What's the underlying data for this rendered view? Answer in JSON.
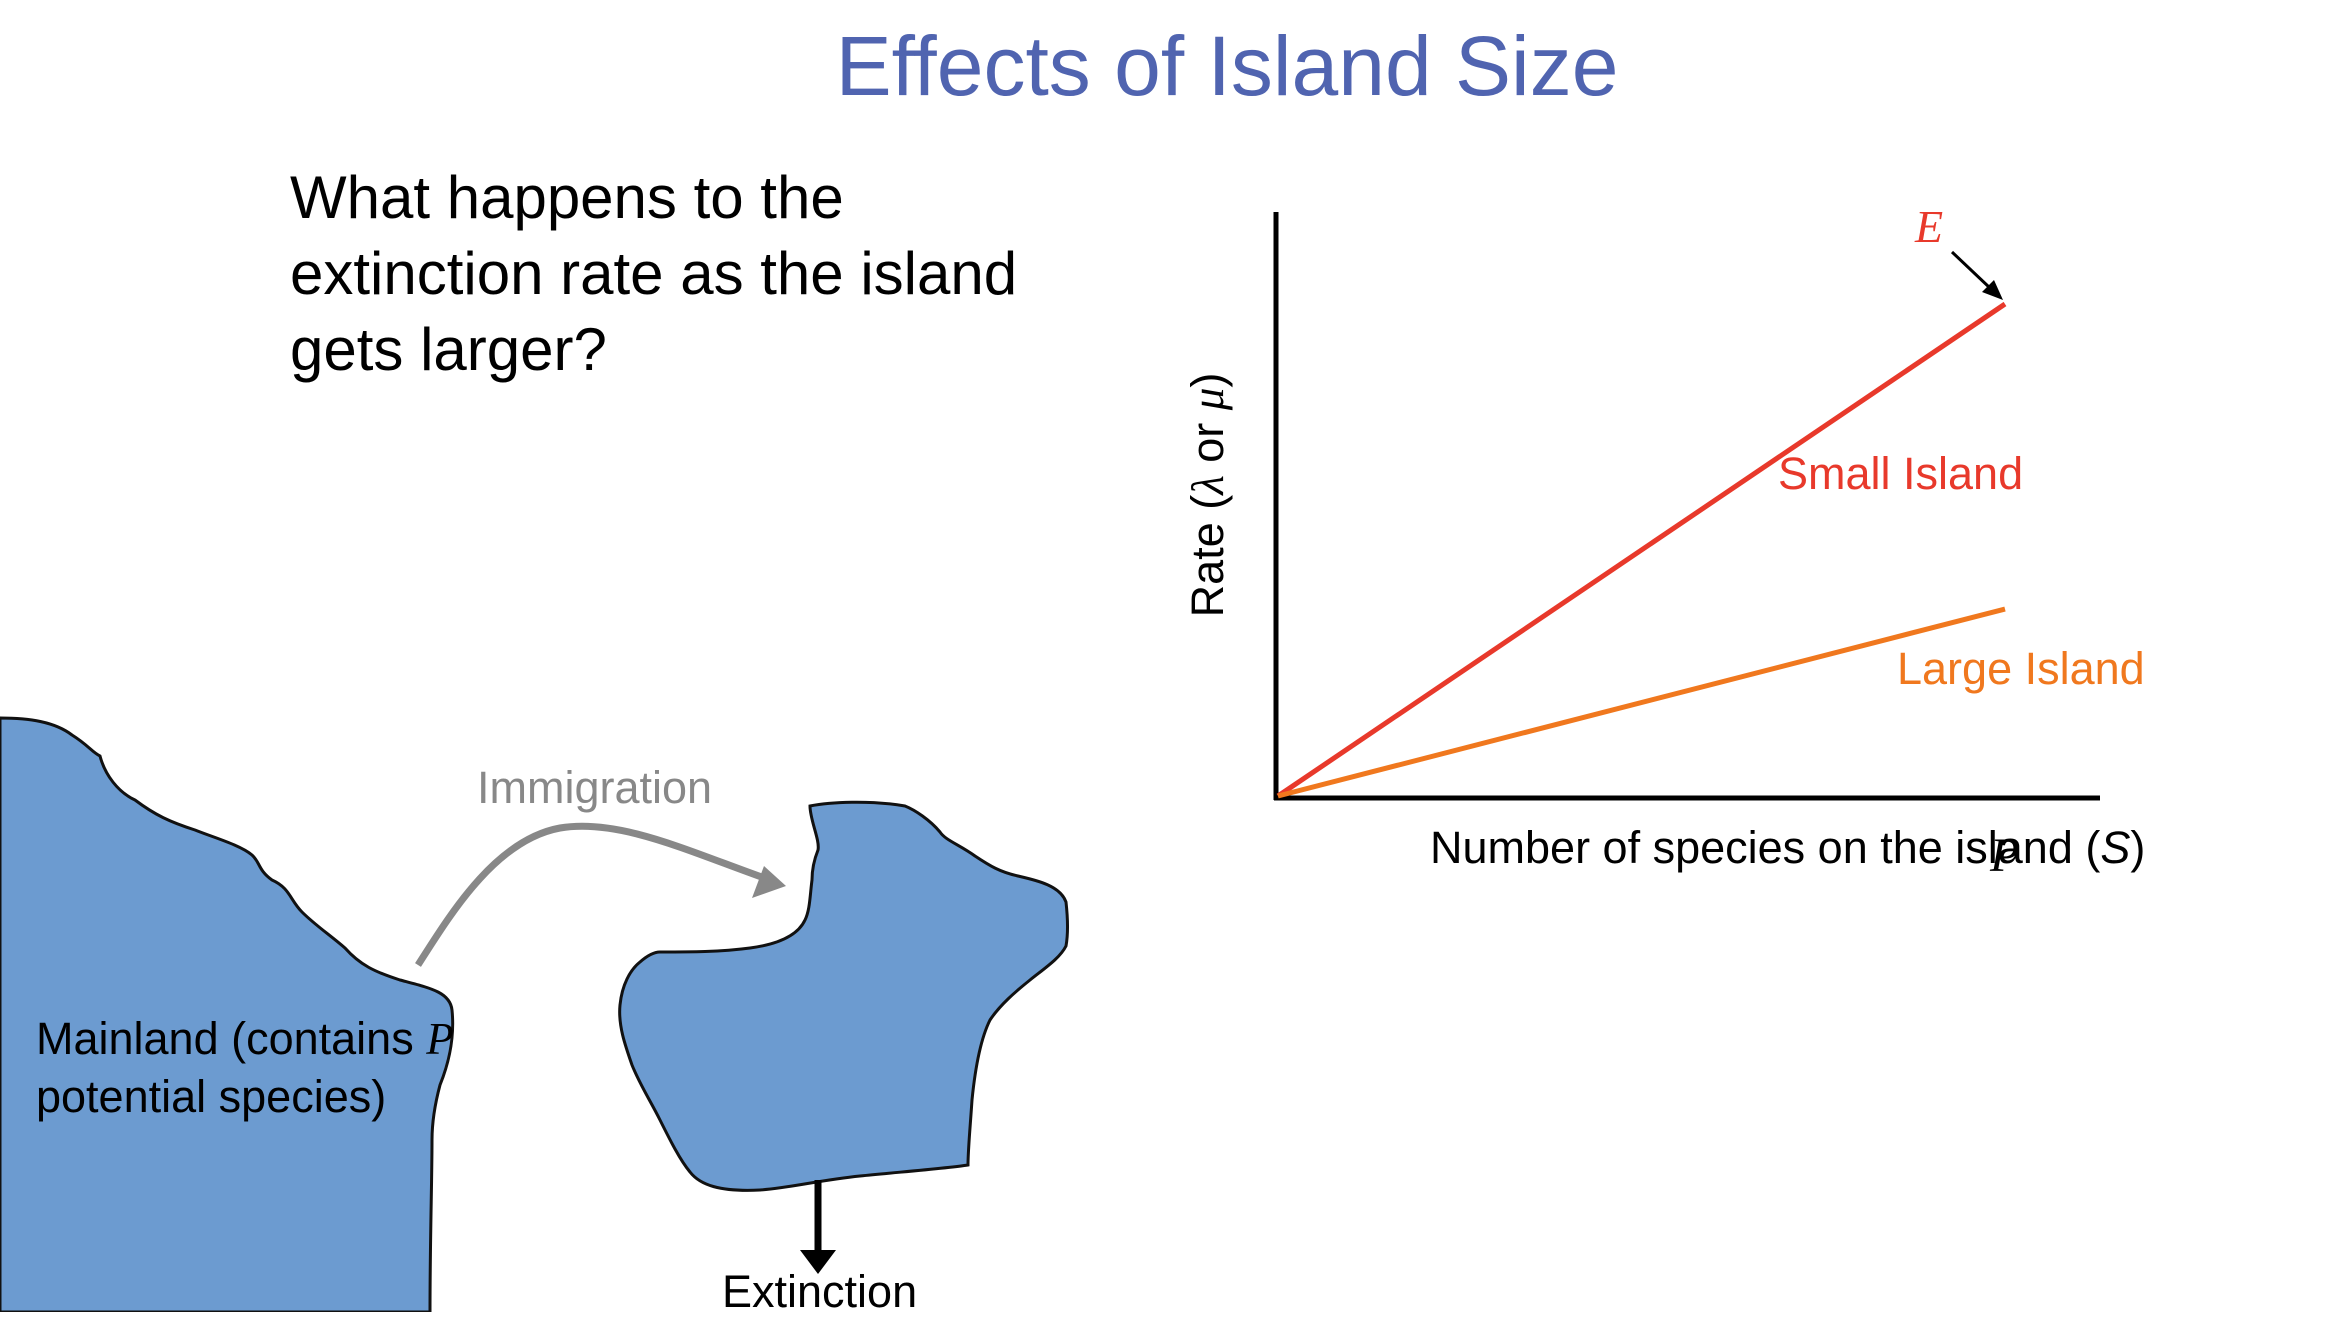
{
  "slide": {
    "title": "Effects of Island Size",
    "question": "What happens to the extinction rate as the island gets larger?"
  },
  "diagram": {
    "mainland_label_pre": "Mainland (contains ",
    "mainland_label_var": "P",
    "mainland_label_post": " potential species)",
    "immigration_label": "Immigration",
    "extinction_label": "Extinction",
    "land_color": "#6c9bd0"
  },
  "chart_data": {
    "type": "line",
    "xlabel_pre": "Number of species on the island (",
    "xlabel_var": "S",
    "xlabel_post": ")",
    "ylabel_pre": "Rate (",
    "ylabel_var1": "λ",
    "ylabel_mid": " or ",
    "ylabel_var2": "μ",
    "ylabel_post": ")",
    "x_end_label": "P",
    "curve_label": "E",
    "x": [
      0,
      1
    ],
    "series": [
      {
        "name": "Small Island",
        "color": "#e8392b",
        "values": [
          0,
          1
        ]
      },
      {
        "name": "Large Island",
        "color": "#f0781e",
        "values": [
          0,
          0.38
        ]
      }
    ]
  }
}
